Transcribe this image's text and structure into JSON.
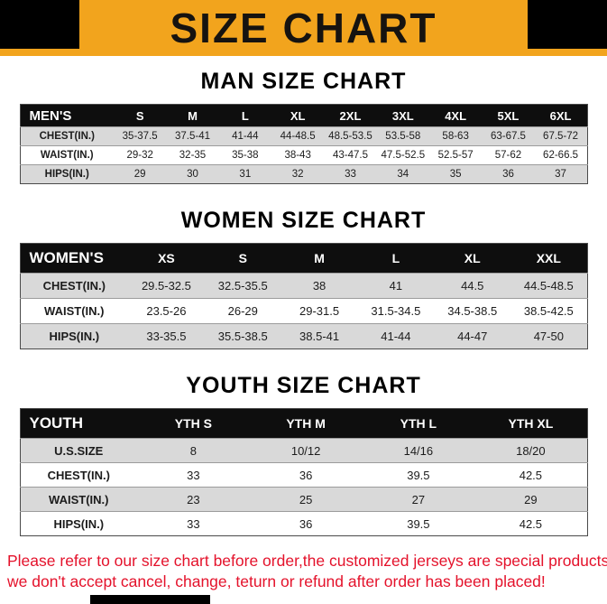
{
  "header": {
    "title": "SIZE CHART"
  },
  "sections": [
    {
      "title": "MAN SIZE CHART",
      "table": {
        "header": [
          "MEN'S",
          "S",
          "M",
          "L",
          "XL",
          "2XL",
          "3XL",
          "4XL",
          "5XL",
          "6XL"
        ],
        "rows": [
          [
            "CHEST(IN.)",
            "35-37.5",
            "37.5-41",
            "41-44",
            "44-48.5",
            "48.5-53.5",
            "53.5-58",
            "58-63",
            "63-67.5",
            "67.5-72"
          ],
          [
            "WAIST(IN.)",
            "29-32",
            "32-35",
            "35-38",
            "38-43",
            "43-47.5",
            "47.5-52.5",
            "52.5-57",
            "57-62",
            "62-66.5"
          ],
          [
            "HIPS(IN.)",
            "29",
            "30",
            "31",
            "32",
            "33",
            "34",
            "35",
            "36",
            "37"
          ]
        ]
      }
    },
    {
      "title": "WOMEN SIZE CHART",
      "table": {
        "header": [
          "WOMEN'S",
          "XS",
          "S",
          "M",
          "L",
          "XL",
          "XXL"
        ],
        "rows": [
          [
            "CHEST(IN.)",
            "29.5-32.5",
            "32.5-35.5",
            "38",
            "41",
            "44.5",
            "44.5-48.5"
          ],
          [
            "WAIST(IN.)",
            "23.5-26",
            "26-29",
            "29-31.5",
            "31.5-34.5",
            "34.5-38.5",
            "38.5-42.5"
          ],
          [
            "HIPS(IN.)",
            "33-35.5",
            "35.5-38.5",
            "38.5-41",
            "41-44",
            "44-47",
            "47-50"
          ]
        ]
      }
    },
    {
      "title": "YOUTH SIZE CHART",
      "table": {
        "header": [
          "YOUTH",
          "YTH S",
          "YTH M",
          "YTH L",
          "YTH XL"
        ],
        "rows": [
          [
            "U.S.SIZE",
            "8",
            "10/12",
            "14/16",
            "18/20"
          ],
          [
            "CHEST(IN.)",
            "33",
            "36",
            "39.5",
            "42.5"
          ],
          [
            "WAIST(IN.)",
            "23",
            "25",
            "27",
            "29"
          ],
          [
            "HIPS(IN.)",
            "33",
            "36",
            "39.5",
            "42.5"
          ]
        ]
      }
    }
  ],
  "footer": {
    "line1": "Please refer to our size chart before order,the customized jerseys are special products,",
    "line2": "we don't accept cancel, change, teturn or refund after order has been placed!"
  }
}
